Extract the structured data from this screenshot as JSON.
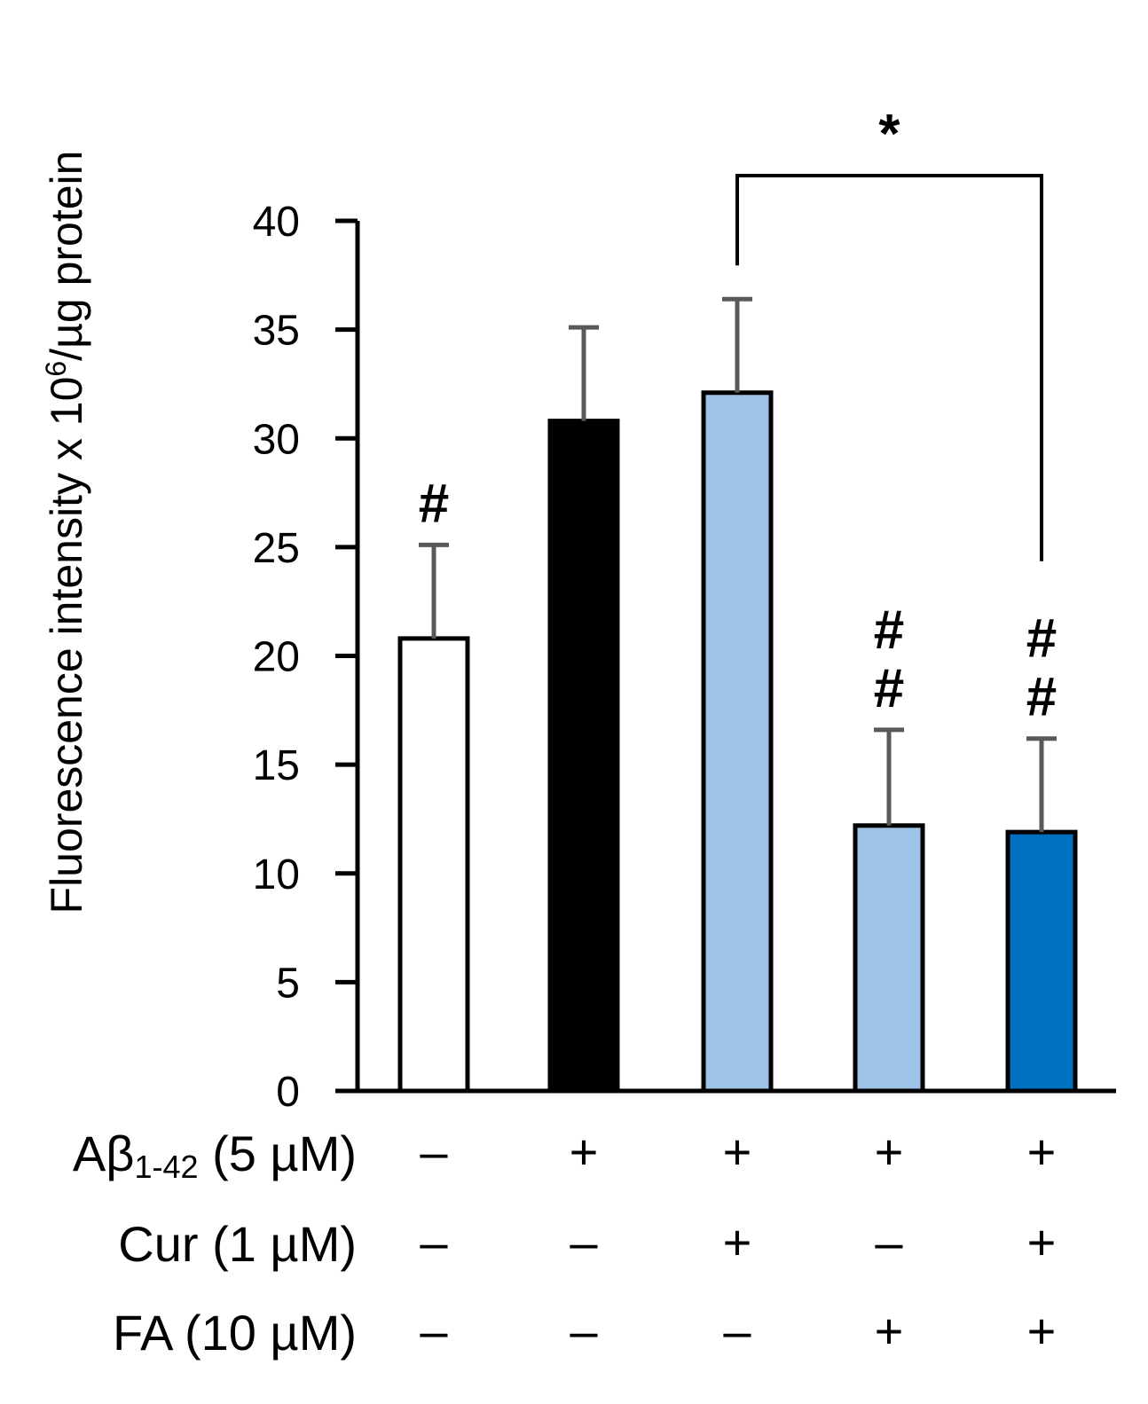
{
  "chart_data": {
    "type": "bar",
    "ylabel": {
      "main": "Fluorescence intensity x 10",
      "sup": "6",
      "tail": "/µg protein"
    },
    "ylim": [
      0,
      40
    ],
    "yticks": [
      0,
      5,
      10,
      15,
      20,
      25,
      30,
      35,
      40
    ],
    "ytick_labels": [
      "0",
      "5",
      "10",
      "15",
      "20",
      "25",
      "30",
      "35",
      "40"
    ],
    "values": [
      20.8,
      30.8,
      32.1,
      12.2,
      11.9
    ],
    "errors": [
      4.3,
      4.3,
      4.3,
      4.4,
      4.3
    ],
    "bar_colors": [
      "#ffffff",
      "#000000",
      "#9dc3e6",
      "#9dc3e6",
      "#0070c0"
    ],
    "error_bar_color": "#595959",
    "annotations": [
      [
        "#"
      ],
      [],
      [],
      [
        "#",
        "#"
      ],
      [
        "#",
        "#"
      ]
    ],
    "comparison": {
      "from": 2,
      "to": 4,
      "label": "*"
    },
    "conditions": [
      {
        "label": "Aβ",
        "sub": "1-42",
        "tail": " (5 µM)",
        "signs": [
          "–",
          "+",
          "+",
          "+",
          "+"
        ]
      },
      {
        "label": "Cur (1 µM)",
        "sub": "",
        "tail": "",
        "signs": [
          "–",
          "–",
          "+",
          "–",
          "+"
        ]
      },
      {
        "label": "FA (10 µM)",
        "sub": "",
        "tail": "",
        "signs": [
          "–",
          "–",
          "–",
          "+",
          "+"
        ]
      }
    ]
  }
}
